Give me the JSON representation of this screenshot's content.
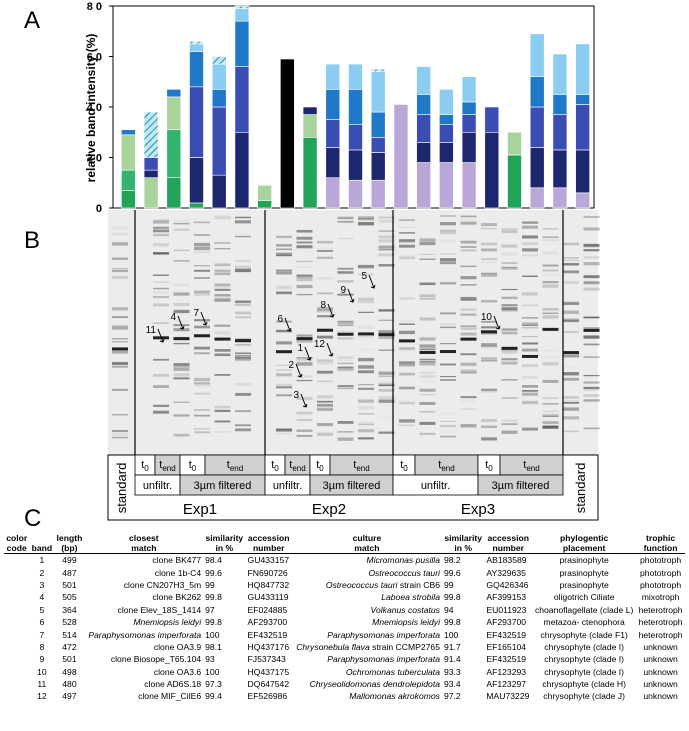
{
  "panel_labels": [
    "A",
    "B",
    "C"
  ],
  "chart_data": {
    "type": "stacked-bar",
    "y_label": "relative band intensity (%)",
    "categories": [
      null,
      null,
      null,
      null,
      null,
      null,
      null,
      null,
      null,
      null,
      null,
      null,
      null,
      null,
      null,
      null,
      null,
      null,
      null,
      null,
      null
    ],
    "ylim": [
      0,
      80
    ],
    "yticks": [
      0,
      20,
      40,
      60,
      80
    ],
    "series": [
      {
        "color": "#22a35a",
        "values": [
          7,
          null,
          12,
          2,
          null,
          null,
          3,
          null,
          28,
          null,
          null,
          null,
          null,
          null,
          null,
          null,
          null,
          21,
          null,
          null,
          null
        ]
      },
      {
        "color": "#34b36e",
        "values": [
          8,
          null,
          19,
          null,
          null,
          null,
          null,
          null,
          null,
          null,
          null,
          null,
          null,
          null,
          null,
          null,
          null,
          null,
          null,
          null,
          null
        ]
      },
      {
        "color": "#a6d49a",
        "values": [
          14,
          12,
          13,
          null,
          null,
          null,
          6,
          null,
          9,
          null,
          null,
          null,
          null,
          null,
          null,
          null,
          null,
          9,
          null,
          null,
          null
        ]
      },
      {
        "color": "#b9a7d8",
        "values": [
          null,
          null,
          null,
          null,
          null,
          null,
          null,
          null,
          null,
          12,
          11,
          11,
          41,
          18,
          18,
          18,
          null,
          null,
          8,
          8,
          6
        ]
      },
      {
        "color": "#000000",
        "values": [
          null,
          null,
          null,
          null,
          null,
          null,
          null,
          59,
          null,
          null,
          null,
          null,
          null,
          null,
          null,
          null,
          null,
          null,
          null,
          null,
          null
        ]
      },
      {
        "color": "#1d2770",
        "values": [
          null,
          3,
          null,
          18,
          13,
          30,
          null,
          null,
          3,
          12,
          12,
          11,
          null,
          8,
          8,
          12,
          30,
          null,
          16,
          15,
          17
        ]
      },
      {
        "color": "#3a4db3",
        "values": [
          null,
          5,
          null,
          28,
          27,
          26,
          null,
          null,
          null,
          11,
          10,
          6,
          null,
          11,
          7,
          7,
          10,
          null,
          16,
          14,
          18
        ]
      },
      {
        "color": "#1f78c8",
        "values": [
          2,
          null,
          3,
          14,
          7,
          18,
          null,
          null,
          null,
          12,
          14,
          10,
          null,
          8,
          4,
          5,
          null,
          null,
          12,
          8,
          4
        ]
      },
      {
        "color": "#8acdf0",
        "values": [
          null,
          null,
          null,
          3,
          10,
          5,
          null,
          null,
          null,
          10,
          10,
          16,
          null,
          11,
          10,
          10,
          null,
          null,
          17,
          16,
          20
        ]
      },
      {
        "color": "#9fd9ec",
        "pattern": "hatched",
        "values": [
          null,
          18,
          null,
          1,
          3,
          1,
          null,
          null,
          null,
          null,
          null,
          1,
          null,
          null,
          null,
          null,
          null,
          null,
          null,
          null,
          null
        ]
      }
    ]
  },
  "gel": {
    "band_labels": [
      "11",
      "4",
      "7",
      "6",
      "1",
      "2",
      "3",
      "12",
      "8",
      "9",
      "5",
      "10"
    ],
    "standard": "standard",
    "times": [
      {
        "main": "t",
        "sub": "0"
      },
      {
        "main": "t",
        "sub": "end"
      }
    ],
    "treatments": [
      "unfiltr.",
      "3µm filtered"
    ],
    "experiments": [
      "Exp1",
      "Exp2",
      "Exp3"
    ]
  },
  "table": {
    "headers": [
      [
        "color",
        "code"
      ],
      [
        "band"
      ],
      [
        "length",
        "(bp)"
      ],
      [
        "closest",
        "match"
      ],
      [
        "similarity",
        "in %"
      ],
      [
        "accession",
        "number"
      ],
      [
        "culture",
        "match"
      ],
      [
        "similarity",
        "in %"
      ],
      [
        "accession",
        "number"
      ],
      [
        "phylogentic",
        "placement"
      ],
      [
        "trophic",
        "function"
      ]
    ],
    "rows": [
      {
        "color": "#22a35a",
        "band": 1,
        "length": 499,
        "closest": {
          "text": "clone BK477",
          "italic": false
        },
        "similarity": 98.4,
        "accession": "GU433157",
        "culture": {
          "name": "Micromonas pusilla"
        },
        "culture_similarity": 98.2,
        "culture_accession": "AB183589",
        "placement": "prasinophyte",
        "trophic": "phototroph"
      },
      {
        "color": "#137a47",
        "band": 2,
        "length": 487,
        "closest": {
          "text": "clone 1b-C4",
          "italic": false
        },
        "similarity": 99.6,
        "accession": "FN690726",
        "culture": {
          "name": "Ostreococcus tauri"
        },
        "culture_similarity": 99.6,
        "culture_accession": "AY329635",
        "placement": "prasinophyte",
        "trophic": "phototroph"
      },
      {
        "color": "#34b36e",
        "band": 3,
        "length": 501,
        "closest": {
          "text": "clone CN207H3_5m",
          "italic": false
        },
        "similarity": 99,
        "accession": "HQ847732",
        "culture": {
          "name": "Ostreococcus tauri",
          "extra": " strain CB6"
        },
        "culture_similarity": 99,
        "culture_accession": "GQ426346",
        "placement": "prasinophyte",
        "trophic": "phototroph"
      },
      {
        "color": "#a6d49a",
        "band": 4,
        "length": 505,
        "closest": {
          "text": "clone BK262",
          "italic": false
        },
        "similarity": 99.8,
        "accession": "GU433119",
        "culture": {
          "name": "Laboea strobila"
        },
        "culture_similarity": 99.8,
        "culture_accession": "AF399153",
        "placement": "oligotrich Ciliate",
        "trophic": "mixotroph"
      },
      {
        "color": "#b9a7d8",
        "band": 5,
        "length": 364,
        "closest": {
          "text": "clone Elev_18S_1414",
          "italic": false
        },
        "similarity": 97,
        "accession": "EF024885",
        "culture": {
          "name": "Volkanus costatus"
        },
        "culture_similarity": 94,
        "culture_accession": "EU011923",
        "placement": "choanoflagellate (clade L)",
        "trophic": "heterotroph"
      },
      {
        "color": "#000000",
        "band": 6,
        "length": 528,
        "closest": {
          "text": "Mnemiopsis leidyi",
          "italic": true
        },
        "similarity": 99.8,
        "accession": "AF293700",
        "culture": {
          "name": "Mnemiopsis leidyi"
        },
        "culture_similarity": 99.8,
        "culture_accession": "AF293700",
        "placement": "metazoa- ctenophora",
        "trophic": "heterotroph"
      },
      {
        "color": "#1d2770",
        "band": 7,
        "length": 514,
        "closest": {
          "text": "Paraphysomonas imperforata",
          "italic": true
        },
        "similarity": 100,
        "accession": "EF432519",
        "culture": {
          "name": "Paraphysomonas imperforata"
        },
        "culture_similarity": 100,
        "culture_accession": "EF432519",
        "placement": "chrysophyte (clade F1)",
        "trophic": "heterotroph"
      },
      {
        "color": "#3a4db3",
        "band": 8,
        "length": 472,
        "closest": {
          "text": "clone OA3.9",
          "italic": false
        },
        "similarity": 98.1,
        "accession": "HQ437176",
        "culture": {
          "name": "Chrysonebula flava",
          "extra": " strain CCMP2765"
        },
        "culture_similarity": 91.7,
        "culture_accession": "EF165104",
        "placement": "chrysophyte (clade I)",
        "trophic": "unknown"
      },
      {
        "color": "#1f78c8",
        "band": 9,
        "length": 501,
        "closest": {
          "text": "clone Biosope_T65.104",
          "italic": false
        },
        "similarity": 93,
        "accession": "FJ537343",
        "culture": {
          "name": "Paraphysomonas imperforata"
        },
        "culture_similarity": 91.4,
        "culture_accession": "EF432519",
        "placement": "chrysophyte (clade I)",
        "trophic": "unknown"
      },
      {
        "color": "#8acdf0",
        "band": 10,
        "length": 498,
        "closest": {
          "text": "clone OA3.6",
          "italic": false
        },
        "similarity": 100,
        "accession": "HQ437175",
        "culture": {
          "name": "Ochromonas tuberculata"
        },
        "culture_similarity": 93.3,
        "culture_accession": "AF123293",
        "placement": "chrysophyte (clade I)",
        "trophic": "unknown"
      },
      {
        "color": "#9fd9ec",
        "pattern": "hatched",
        "band": 11,
        "length": 480,
        "closest": {
          "text": "clone AD6S.18",
          "italic": false
        },
        "similarity": 97.3,
        "accession": "DQ647542",
        "culture": {
          "name": "Chryseolidomonas dendrolepidota"
        },
        "culture_similarity": 93.4,
        "culture_accession": "AF123297",
        "placement": "chrysophyte (clade H)",
        "trophic": "unknown"
      },
      {
        "color": "#4fb8d8",
        "band": 12,
        "length": 497,
        "closest": {
          "text": "clone MIF_CilE6",
          "italic": false
        },
        "similarity": 99.4,
        "accession": "EF526986",
        "culture": {
          "name": "Mallomonas akrokomos"
        },
        "culture_similarity": 97.2,
        "culture_accession": "MAU73229",
        "placement": "chrysophyte (clade J)",
        "trophic": "unknown"
      }
    ]
  }
}
